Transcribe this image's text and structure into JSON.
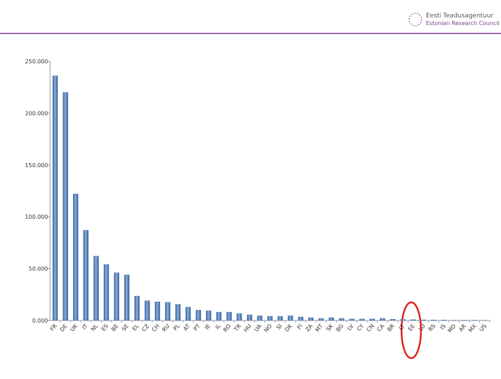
{
  "header": {
    "org_name_et": "Eesti Teadusagentuur",
    "org_name_en": "Estonian Research Council"
  },
  "chart_data": {
    "type": "bar",
    "categories": [
      "FR",
      "DE",
      "UK",
      "IT",
      "NL",
      "ES",
      "BE",
      "SE",
      "EL",
      "CZ",
      "CH",
      "RU",
      "PL",
      "AT",
      "PT",
      "IE",
      "IL",
      "RO",
      "TR",
      "HU",
      "UA",
      "NO",
      "SI",
      "DK",
      "FI",
      "ZA",
      "MT",
      "SK",
      "BG",
      "LV",
      "CY",
      "CN",
      "CA",
      "BR",
      "LT",
      "EE",
      "LU",
      "RS",
      "IS",
      "MD",
      "AR",
      "MX",
      "US"
    ],
    "values": [
      236000,
      220000,
      122000,
      87000,
      62000,
      54000,
      46000,
      44000,
      23500,
      19000,
      18000,
      17500,
      15500,
      12800,
      10000,
      9400,
      8000,
      8000,
      6700,
      5400,
      4500,
      4000,
      4000,
      4500,
      3400,
      2700,
      2000,
      2700,
      2000,
      1400,
      1400,
      1500,
      2000,
      1200,
      1000,
      800,
      600,
      500,
      400,
      300,
      300,
      300,
      200
    ],
    "color": "#4a78b5",
    "ylim": [
      0,
      250000
    ],
    "yticks": [
      {
        "value": 0,
        "label": "0.000"
      },
      {
        "value": 50000,
        "label": "50.000"
      },
      {
        "value": 100000,
        "label": "100.000"
      },
      {
        "value": 150000,
        "label": "150.000"
      },
      {
        "value": 200000,
        "label": "200.000"
      },
      {
        "value": 250000,
        "label": "250.000"
      }
    ],
    "grid": false
  }
}
